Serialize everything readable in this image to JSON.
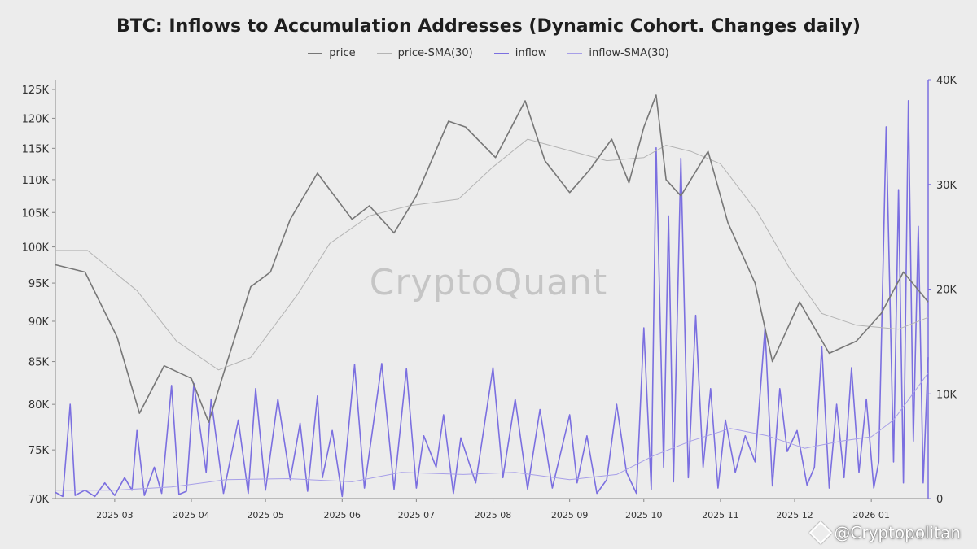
{
  "chart_data": {
    "type": "line",
    "title": "BTC: Inflows to Accumulation Addresses (Dynamic Cohort. Changes daily)",
    "legend": [
      {
        "name": "price",
        "color": "#777777"
      },
      {
        "name": "price-SMA(30)",
        "color": "#b4b4b4"
      },
      {
        "name": "inflow",
        "color": "#7b6fe0"
      },
      {
        "name": "inflow-SMA(30)",
        "color": "#a79fe8"
      }
    ],
    "legend_position": "top-center",
    "grid": false,
    "y_left": {
      "scale": "log",
      "range": [
        70000,
        125000
      ],
      "ticks": [
        {
          "value": 125000,
          "label": "125K"
        },
        {
          "value": 120000,
          "label": "120K"
        },
        {
          "value": 115000,
          "label": "115K"
        },
        {
          "value": 110000,
          "label": "110K"
        },
        {
          "value": 105000,
          "label": "105K"
        },
        {
          "value": 100000,
          "label": "100K"
        },
        {
          "value": 95000,
          "label": "95K"
        },
        {
          "value": 90000,
          "label": "90K"
        },
        {
          "value": 85000,
          "label": "85K"
        },
        {
          "value": 80000,
          "label": "80K"
        },
        {
          "value": 75000,
          "label": "75K"
        },
        {
          "value": 70000,
          "label": "70K"
        }
      ]
    },
    "y_right": {
      "scale": "linear",
      "range": [
        0,
        40000
      ],
      "ticks": [
        {
          "value": 40000,
          "label": "40K"
        },
        {
          "value": 30000,
          "label": "30K"
        },
        {
          "value": 20000,
          "label": "20K"
        },
        {
          "value": 10000,
          "label": "10K"
        },
        {
          "value": 0,
          "label": "0"
        }
      ]
    },
    "x_range": [
      "2025-02-05",
      "2026-01-24"
    ],
    "x_ticks": [
      {
        "date": "2025-03-01",
        "label": "2025 03"
      },
      {
        "date": "2025-04-01",
        "label": "2025 04"
      },
      {
        "date": "2025-05-01",
        "label": "2025 05"
      },
      {
        "date": "2025-06-01",
        "label": "2025 06"
      },
      {
        "date": "2025-07-01",
        "label": "2025 07"
      },
      {
        "date": "2025-08-01",
        "label": "2025 08"
      },
      {
        "date": "2025-09-01",
        "label": "2025 09"
      },
      {
        "date": "2025-10-01",
        "label": "2025 10"
      },
      {
        "date": "2025-11-01",
        "label": "2025 11"
      },
      {
        "date": "2025-12-01",
        "label": "2025 12"
      },
      {
        "date": "2026-01-01",
        "label": "2026 01"
      }
    ],
    "series": [
      {
        "name": "price",
        "axis": "left",
        "x": [
          "2025-02-05",
          "2025-02-17",
          "2025-03-02",
          "2025-03-11",
          "2025-03-21",
          "2025-04-01",
          "2025-04-08",
          "2025-04-15",
          "2025-04-25",
          "2025-05-03",
          "2025-05-11",
          "2025-05-22",
          "2025-06-05",
          "2025-06-12",
          "2025-06-22",
          "2025-07-01",
          "2025-07-14",
          "2025-07-21",
          "2025-08-02",
          "2025-08-14",
          "2025-08-22",
          "2025-09-01",
          "2025-09-09",
          "2025-09-18",
          "2025-09-25",
          "2025-10-01",
          "2025-10-06",
          "2025-10-10",
          "2025-10-16",
          "2025-10-27",
          "2025-11-04",
          "2025-11-15",
          "2025-11-22",
          "2025-12-03",
          "2025-12-15",
          "2025-12-26",
          "2026-01-05",
          "2026-01-14",
          "2026-01-24"
        ],
        "values": [
          97500,
          96500,
          88000,
          79000,
          84500,
          83000,
          78000,
          84500,
          94500,
          96500,
          104000,
          111000,
          104000,
          106000,
          102000,
          107500,
          119500,
          118500,
          113500,
          123000,
          113000,
          108000,
          111500,
          116500,
          109500,
          118500,
          124000,
          110000,
          107500,
          114500,
          103500,
          95000,
          85000,
          92500,
          86000,
          87500,
          91000,
          96500,
          92500
        ]
      },
      {
        "name": "price-SMA(30)",
        "axis": "left",
        "x": [
          "2025-02-05",
          "2025-02-18",
          "2025-03-10",
          "2025-03-26",
          "2025-04-12",
          "2025-04-25",
          "2025-05-14",
          "2025-05-27",
          "2025-06-12",
          "2025-06-28",
          "2025-07-18",
          "2025-08-01",
          "2025-08-15",
          "2025-09-02",
          "2025-09-16",
          "2025-10-01",
          "2025-10-10",
          "2025-10-20",
          "2025-11-01",
          "2025-11-16",
          "2025-11-29",
          "2025-12-12",
          "2025-12-26",
          "2026-01-12",
          "2026-01-24"
        ],
        "values": [
          99500,
          99500,
          94000,
          87500,
          84000,
          85500,
          93500,
          100500,
          104500,
          106000,
          107000,
          112000,
          116500,
          114500,
          113000,
          113500,
          115500,
          114500,
          112500,
          105000,
          97000,
          91000,
          89500,
          89000,
          90500
        ]
      },
      {
        "name": "inflow",
        "axis": "right",
        "x": [
          "2025-02-05",
          "2025-02-08",
          "2025-02-11",
          "2025-02-13",
          "2025-02-17",
          "2025-02-21",
          "2025-02-25",
          "2025-03-01",
          "2025-03-05",
          "2025-03-08",
          "2025-03-10",
          "2025-03-13",
          "2025-03-17",
          "2025-03-20",
          "2025-03-24",
          "2025-03-27",
          "2025-03-30",
          "2025-04-02",
          "2025-04-07",
          "2025-04-09",
          "2025-04-14",
          "2025-04-20",
          "2025-04-24",
          "2025-04-27",
          "2025-05-01",
          "2025-05-06",
          "2025-05-11",
          "2025-05-15",
          "2025-05-18",
          "2025-05-22",
          "2025-05-24",
          "2025-05-28",
          "2025-06-01",
          "2025-06-06",
          "2025-06-10",
          "2025-06-17",
          "2025-06-22",
          "2025-06-27",
          "2025-07-01",
          "2025-07-04",
          "2025-07-09",
          "2025-07-12",
          "2025-07-16",
          "2025-07-19",
          "2025-07-25",
          "2025-08-01",
          "2025-08-05",
          "2025-08-10",
          "2025-08-15",
          "2025-08-20",
          "2025-08-25",
          "2025-09-01",
          "2025-09-04",
          "2025-09-08",
          "2025-09-12",
          "2025-09-16",
          "2025-09-20",
          "2025-09-24",
          "2025-09-28",
          "2025-10-01",
          "2025-10-04",
          "2025-10-06",
          "2025-10-09",
          "2025-10-11",
          "2025-10-13",
          "2025-10-16",
          "2025-10-19",
          "2025-10-22",
          "2025-10-25",
          "2025-10-28",
          "2025-10-31",
          "2025-11-03",
          "2025-11-07",
          "2025-11-11",
          "2025-11-15",
          "2025-11-19",
          "2025-11-22",
          "2025-11-25",
          "2025-11-28",
          "2025-12-02",
          "2025-12-06",
          "2025-12-09",
          "2025-12-12",
          "2025-12-15",
          "2025-12-18",
          "2025-12-21",
          "2025-12-24",
          "2025-12-27",
          "2025-12-30",
          "2026-01-02",
          "2026-01-04",
          "2026-01-07",
          "2026-01-10",
          "2026-01-12",
          "2026-01-14",
          "2026-01-16",
          "2026-01-18",
          "2026-01-20",
          "2026-01-22",
          "2026-01-24"
        ],
        "values": [
          600,
          200,
          9000,
          300,
          800,
          200,
          1500,
          300,
          2000,
          800,
          6500,
          300,
          3000,
          500,
          10800,
          400,
          700,
          11000,
          2500,
          9500,
          500,
          7500,
          500,
          10500,
          800,
          9500,
          1800,
          7200,
          700,
          9800,
          2000,
          6500,
          200,
          12800,
          1000,
          12900,
          900,
          12400,
          1000,
          6000,
          3000,
          8000,
          500,
          5800,
          1500,
          12500,
          2000,
          9500,
          900,
          8500,
          1000,
          8000,
          1500,
          6000,
          500,
          1800,
          9000,
          2500,
          500,
          16300,
          900,
          33500,
          3000,
          27000,
          1600,
          32500,
          2000,
          17500,
          3000,
          10500,
          1000,
          7500,
          2500,
          6000,
          3500,
          16300,
          1200,
          10500,
          4500,
          6500,
          1300,
          3000,
          14500,
          1000,
          9000,
          2000,
          12500,
          2500,
          9500,
          1000,
          3500,
          35500,
          3500,
          29500,
          1500,
          38000,
          5500,
          26000,
          1500,
          13500
        ]
      },
      {
        "name": "inflow-SMA(30)",
        "axis": "right",
        "x": [
          "2025-02-05",
          "2025-03-01",
          "2025-03-24",
          "2025-04-15",
          "2025-05-10",
          "2025-06-05",
          "2025-06-25",
          "2025-07-20",
          "2025-08-10",
          "2025-09-01",
          "2025-09-20",
          "2025-10-05",
          "2025-10-20",
          "2025-11-05",
          "2025-11-20",
          "2025-12-05",
          "2025-12-20",
          "2026-01-01",
          "2026-01-10",
          "2026-01-24"
        ],
        "values": [
          800,
          800,
          1100,
          1800,
          1900,
          1600,
          2500,
          2300,
          2500,
          1800,
          2300,
          4100,
          5500,
          6700,
          6000,
          4800,
          5500,
          5900,
          7500,
          12000
        ]
      }
    ]
  },
  "watermark": "CryptoQuant",
  "credit": "@Cryptopolitan"
}
